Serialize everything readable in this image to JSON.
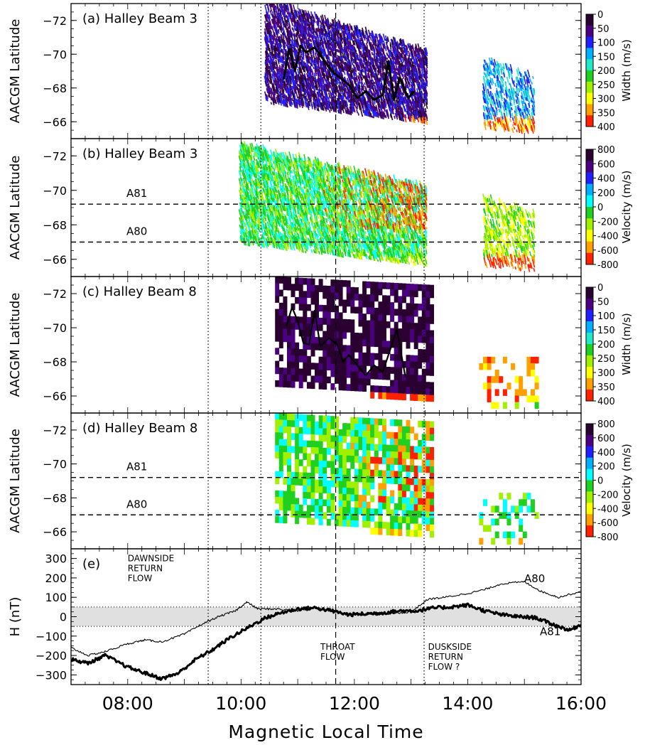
{
  "chart_data": {
    "type": "heatmap",
    "x_axis": {
      "label": "Magnetic Local Time",
      "range": [
        7.0,
        16.0
      ],
      "ticks": [
        8,
        10,
        12,
        14,
        16
      ],
      "tick_labels": [
        "08:00",
        "10:00",
        "12:00",
        "14:00",
        "16:00"
      ]
    },
    "vertical_markers": [
      {
        "mlt": 9.42,
        "style": "dotted"
      },
      {
        "mlt": 10.35,
        "style": "dotted"
      },
      {
        "mlt": 11.67,
        "style": "dashed"
      },
      {
        "mlt": 13.23,
        "style": "dotted"
      }
    ],
    "colors": {
      "width": [
        "#2a0030",
        "#4b0080",
        "#2020ff",
        "#00b0ff",
        "#20e8c8",
        "#20d020",
        "#a0f000",
        "#ffff00",
        "#ffa000",
        "#ff2000"
      ],
      "velocity": [
        "#2a0030",
        "#4b0080",
        "#2020ff",
        "#00b0ff",
        "#00ffff",
        "#20d020",
        "#a0f000",
        "#ffff00",
        "#ffa000",
        "#ff2000"
      ]
    },
    "panels": [
      {
        "label": "(a) Halley Beam 3",
        "ylabel": "AACGM Latitude",
        "ylim": [
          -65.0,
          -73.0
        ],
        "yticks": [
          -72,
          -70,
          -68,
          -66
        ],
        "ytick_labels": [
          "-72",
          "-70",
          "-68",
          "-66"
        ],
        "quantity": "width",
        "colorbar": {
          "label": "Width (m/s)",
          "range": [
            0,
            400
          ],
          "ticks": [
            0,
            50,
            100,
            150,
            200,
            250,
            300,
            350,
            400
          ],
          "tick_labels": [
            "0",
            "50",
            "100",
            "150",
            "200",
            "250",
            "300",
            "350",
            "400"
          ]
        },
        "regions": [
          {
            "x0": 10.45,
            "x1": 13.3,
            "lat_top_start": -73.0,
            "lat_top_end": -70.0,
            "lat_bot_start": -67.0,
            "lat_bot_end": -65.8,
            "style": "streaks",
            "bands": [
              {
                "lat": -73.0,
                "c": 9
              },
              {
                "lat": -71.0,
                "c": 8
              },
              {
                "lat": -69.5,
                "c": 6
              },
              {
                "lat": -68.8,
                "c": 4
              },
              {
                "lat": -68.0,
                "c": 3
              },
              {
                "lat": -67.2,
                "c": 2
              },
              {
                "lat": -66.0,
                "c": 1
              }
            ]
          },
          {
            "x0": 14.3,
            "x1": 15.2,
            "lat_top_start": -69.5,
            "lat_top_end": -68.5,
            "lat_bot_start": -65.5,
            "lat_bot_end": -65.2,
            "style": "sparse",
            "bands": [
              {
                "lat": -69.5,
                "c": 8
              },
              {
                "lat": -67.5,
                "c": 6
              },
              {
                "lat": -66.0,
                "c": 3
              }
            ]
          }
        ],
        "line": {
          "mlt": [
            10.75,
            10.85,
            10.95,
            11.05,
            11.15,
            11.3,
            11.45,
            11.6,
            11.75,
            11.9,
            12.05,
            12.2,
            12.35,
            12.5,
            12.6,
            12.7,
            12.8,
            12.95,
            13.05
          ],
          "lat": [
            -68.5,
            -70.3,
            -69.0,
            -70.5,
            -70.1,
            -70.4,
            -69.7,
            -69.0,
            -68.6,
            -68.2,
            -67.4,
            -67.8,
            -67.3,
            -67.6,
            -69.6,
            -67.3,
            -68.6,
            -67.4,
            -67.8
          ]
        }
      },
      {
        "label": "(b) Halley Beam 3",
        "ylabel": "AACGM Latitude",
        "ylim": [
          -65.0,
          -73.0
        ],
        "yticks": [
          -72,
          -70,
          -68,
          -66
        ],
        "ytick_labels": [
          "-72",
          "-70",
          "-68",
          "-66"
        ],
        "quantity": "velocity",
        "colorbar": {
          "label": "Velocity (m/s)",
          "range": [
            800,
            -800
          ],
          "ticks": [
            800,
            600,
            400,
            200,
            0,
            -200,
            -400,
            -600,
            -800
          ],
          "tick_labels": [
            "800",
            "600",
            "400",
            "200",
            "0",
            "-200",
            "-400",
            "-600",
            "-800"
          ]
        },
        "regions": [
          {
            "x0": 10.0,
            "x1": 13.3,
            "lat_top_start": -72.5,
            "lat_top_end": -70.0,
            "lat_bot_start": -66.8,
            "lat_bot_end": -65.5,
            "style": "streaks",
            "bands": [
              {
                "lat": -72.5,
                "c": 6
              },
              {
                "lat": -70.0,
                "c": 6
              },
              {
                "lat": -68.5,
                "c": 7
              },
              {
                "lat": -67.0,
                "c": 6
              },
              {
                "lat": -66.0,
                "c": 5
              }
            ],
            "right_color": 9
          },
          {
            "x0": 14.3,
            "x1": 15.2,
            "lat_top_start": -69.5,
            "lat_top_end": -68.5,
            "lat_bot_start": -65.5,
            "lat_bot_end": -65.2,
            "style": "sparse",
            "bands": [
              {
                "lat": -69.5,
                "c": 9
              },
              {
                "lat": -67.0,
                "c": 7
              },
              {
                "lat": -66.0,
                "c": 6
              }
            ]
          }
        ],
        "hlines": [
          {
            "lat": -69.2,
            "label": "A81"
          },
          {
            "lat": -67.0,
            "label": "A80"
          }
        ]
      },
      {
        "label": "(c) Halley Beam 8",
        "ylabel": "AACGM Latitude",
        "ylim": [
          -65.0,
          -73.0
        ],
        "yticks": [
          -72,
          -70,
          -68,
          -66
        ],
        "ytick_labels": [
          "-72",
          "-70",
          "-68",
          "-66"
        ],
        "quantity": "width",
        "colorbar": {
          "label": "Width (m/s)",
          "range": [
            0,
            400
          ],
          "ticks": [
            0,
            50,
            100,
            150,
            200,
            250,
            300,
            350,
            400
          ],
          "tick_labels": [
            "0",
            "50",
            "100",
            "150",
            "200",
            "250",
            "300",
            "350",
            "400"
          ]
        },
        "regions": [
          {
            "x0": 10.6,
            "x1": 13.4,
            "lat_top_start": -73.0,
            "lat_top_end": -72.5,
            "lat_bot_start": -66.6,
            "lat_bot_end": -66.0,
            "style": "blocks",
            "bands": [
              {
                "lat": -73.0,
                "c": 9
              },
              {
                "lat": -71.0,
                "c": 7
              },
              {
                "lat": -69.5,
                "c": 5
              },
              {
                "lat": -68.3,
                "c": 3
              },
              {
                "lat": -67.0,
                "c": 1
              },
              {
                "lat": -66.3,
                "c": 0
              }
            ]
          },
          {
            "x0": 14.2,
            "x1": 15.2,
            "lat_top_start": -68.3,
            "lat_top_end": -68.3,
            "lat_bot_start": -65.6,
            "lat_bot_end": -65.6,
            "style": "sparseblocks",
            "bands": [
              {
                "lat": -68.3,
                "c": 6
              },
              {
                "lat": -67.0,
                "c": 4
              },
              {
                "lat": -65.8,
                "c": 8
              }
            ]
          }
        ],
        "line": {
          "mlt": [
            10.8,
            10.9,
            11.0,
            11.1,
            11.2,
            11.3,
            11.4,
            11.55,
            11.7,
            11.8,
            11.9,
            12.05,
            12.2,
            12.35,
            12.5,
            12.6,
            12.75,
            12.9
          ],
          "lat": [
            -70.1,
            -71.2,
            -70.4,
            -69.1,
            -69.0,
            -71.0,
            -68.9,
            -69.4,
            -69.0,
            -68.0,
            -68.4,
            -67.8,
            -67.2,
            -67.8,
            -67.4,
            -68.4,
            -69.9,
            -67.1
          ]
        }
      },
      {
        "label": "(d) Halley Beam 8",
        "ylabel": "AACGM Latitude",
        "ylim": [
          -65.0,
          -73.0
        ],
        "yticks": [
          -72,
          -70,
          -68,
          -66
        ],
        "ytick_labels": [
          "-72",
          "-70",
          "-68",
          "-66"
        ],
        "quantity": "velocity",
        "colorbar": {
          "label": "Velocity (m/s)",
          "range": [
            800,
            -800
          ],
          "ticks": [
            800,
            600,
            400,
            200,
            0,
            -200,
            -400,
            -600,
            -800
          ],
          "tick_labels": [
            "800",
            "600",
            "400",
            "200",
            "0",
            "-200",
            "-400",
            "-600",
            "-800"
          ]
        },
        "regions": [
          {
            "x0": 10.6,
            "x1": 13.4,
            "lat_top_start": -73.0,
            "lat_top_end": -72.5,
            "lat_bot_start": -66.6,
            "lat_bot_end": -66.0,
            "style": "blocks",
            "bands": [
              {
                "lat": -73.0,
                "c": 7
              },
              {
                "lat": -71.0,
                "c": 6
              },
              {
                "lat": -69.0,
                "c": 5
              },
              {
                "lat": -67.5,
                "c": 6
              },
              {
                "lat": -66.5,
                "c": 5
              }
            ],
            "right_color": 9
          },
          {
            "x0": 14.2,
            "x1": 15.2,
            "lat_top_start": -68.3,
            "lat_top_end": -68.3,
            "lat_bot_start": -65.5,
            "lat_bot_end": -65.5,
            "style": "sparseblocks",
            "bands": [
              {
                "lat": -68.3,
                "c": 7
              },
              {
                "lat": -67.0,
                "c": 6
              },
              {
                "lat": -65.8,
                "c": 5
              }
            ]
          }
        ],
        "hlines": [
          {
            "lat": -69.2,
            "label": "A81"
          },
          {
            "lat": -67.0,
            "label": "A80"
          }
        ]
      },
      {
        "label": "(e)",
        "ylabel": "H (nT)",
        "ylim": [
          -350,
          350
        ],
        "yticks": [
          300,
          200,
          100,
          0,
          -100,
          -200,
          -300
        ],
        "ytick_labels": [
          "300",
          "200",
          "100",
          "0",
          "-100",
          "-200",
          "-300"
        ],
        "quantity": "timeseries",
        "shaded_band": [
          -50,
          50
        ],
        "annotations": [
          {
            "lines": [
              "DAWNSIDE",
              "RETURN",
              "FLOW"
            ],
            "mlt": 8.0,
            "value": 285
          },
          {
            "lines": [
              "THROAT",
              "FLOW"
            ],
            "mlt": 11.4,
            "value": -170
          },
          {
            "lines": [
              "DUSKSIDE",
              "RETURN",
              "FLOW ?"
            ],
            "mlt": 13.3,
            "value": -170
          }
        ],
        "series": [
          {
            "name": "A80",
            "width": "thin",
            "mlt": [
              7.0,
              7.3,
              7.6,
              8.0,
              8.3,
              8.6,
              9.0,
              9.3,
              9.6,
              9.9,
              10.1,
              10.3,
              10.6,
              11.0,
              11.3,
              11.6,
              11.8,
              12.2,
              12.6,
              13.0,
              13.3,
              13.6,
              14.0,
              14.3,
              14.6,
              15.0,
              15.3,
              15.6,
              16.0
            ],
            "h": [
              -160,
              -200,
              -180,
              -140,
              -120,
              -130,
              -90,
              -40,
              0,
              30,
              75,
              40,
              40,
              30,
              50,
              30,
              20,
              10,
              15,
              25,
              90,
              100,
              120,
              140,
              170,
              180,
              130,
              100,
              130
            ]
          },
          {
            "name": "A81",
            "width": "thick",
            "mlt": [
              7.0,
              7.3,
              7.6,
              8.0,
              8.3,
              8.6,
              8.9,
              9.2,
              9.5,
              9.8,
              10.1,
              10.4,
              10.7,
              11.0,
              11.3,
              11.6,
              11.9,
              12.2,
              12.5,
              12.8,
              13.1,
              13.4,
              13.7,
              14.0,
              14.3,
              14.6,
              14.9,
              15.2,
              15.5,
              15.8,
              16.0
            ],
            "h": [
              -220,
              -240,
              -200,
              -260,
              -290,
              -320,
              -290,
              -220,
              -170,
              -110,
              -60,
              -10,
              20,
              40,
              45,
              30,
              10,
              15,
              20,
              30,
              30,
              45,
              50,
              60,
              30,
              10,
              0,
              -5,
              -40,
              -70,
              -40
            ]
          }
        ]
      }
    ]
  }
}
